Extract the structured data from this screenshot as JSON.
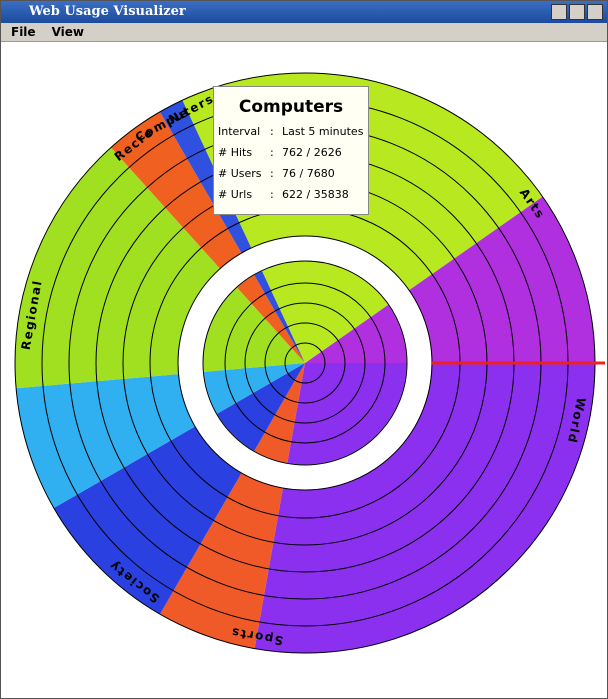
{
  "window": {
    "title": "Web Usage Visualizer"
  },
  "menu": [
    "File",
    "View"
  ],
  "categories": [
    "Computers",
    "Arts",
    "World",
    "Sports",
    "Society",
    "Regional",
    "Recre",
    "Ne"
  ],
  "tooltip": {
    "title": "Computers",
    "rows": [
      [
        "Interval",
        ":",
        "Last 5 minutes"
      ],
      [
        "# Hits",
        ":",
        "762 / 2626"
      ],
      [
        "# Users",
        ":",
        "76 / 7680"
      ],
      [
        "# Urls",
        ":",
        "622 / 35838"
      ]
    ]
  }
}
